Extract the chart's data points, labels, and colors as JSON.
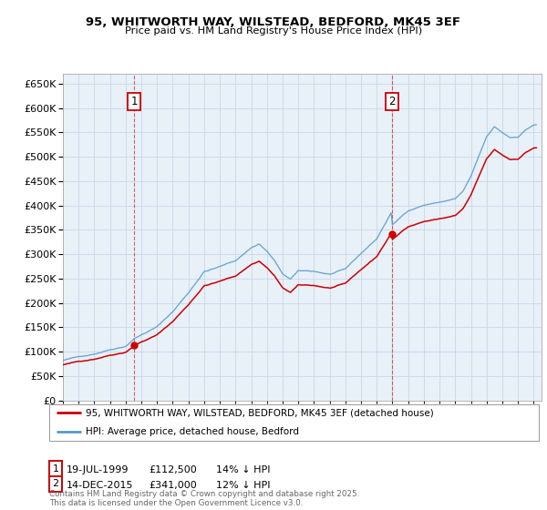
{
  "title": "95, WHITWORTH WAY, WILSTEAD, BEDFORD, MK45 3EF",
  "subtitle": "Price paid vs. HM Land Registry's House Price Index (HPI)",
  "ylim": [
    0,
    670000
  ],
  "yticks": [
    0,
    50000,
    100000,
    150000,
    200000,
    250000,
    300000,
    350000,
    400000,
    450000,
    500000,
    550000,
    600000,
    650000
  ],
  "xlim_start": 1995.0,
  "xlim_end": 2025.5,
  "sale1_date": 1999.54,
  "sale1_price": 112500,
  "sale2_date": 2015.96,
  "sale2_price": 341000,
  "sale_line_color": "#cc0000",
  "hpi_line_color": "#5599cc",
  "background_color": "#ffffff",
  "plot_bg_color": "#e8f0f8",
  "grid_color": "#c8d8e8",
  "legend1_text": "95, WHITWORTH WAY, WILSTEAD, BEDFORD, MK45 3EF (detached house)",
  "legend2_text": "HPI: Average price, detached house, Bedford",
  "footer": "Contains HM Land Registry data © Crown copyright and database right 2025.\nThis data is licensed under the Open Government Licence v3.0."
}
